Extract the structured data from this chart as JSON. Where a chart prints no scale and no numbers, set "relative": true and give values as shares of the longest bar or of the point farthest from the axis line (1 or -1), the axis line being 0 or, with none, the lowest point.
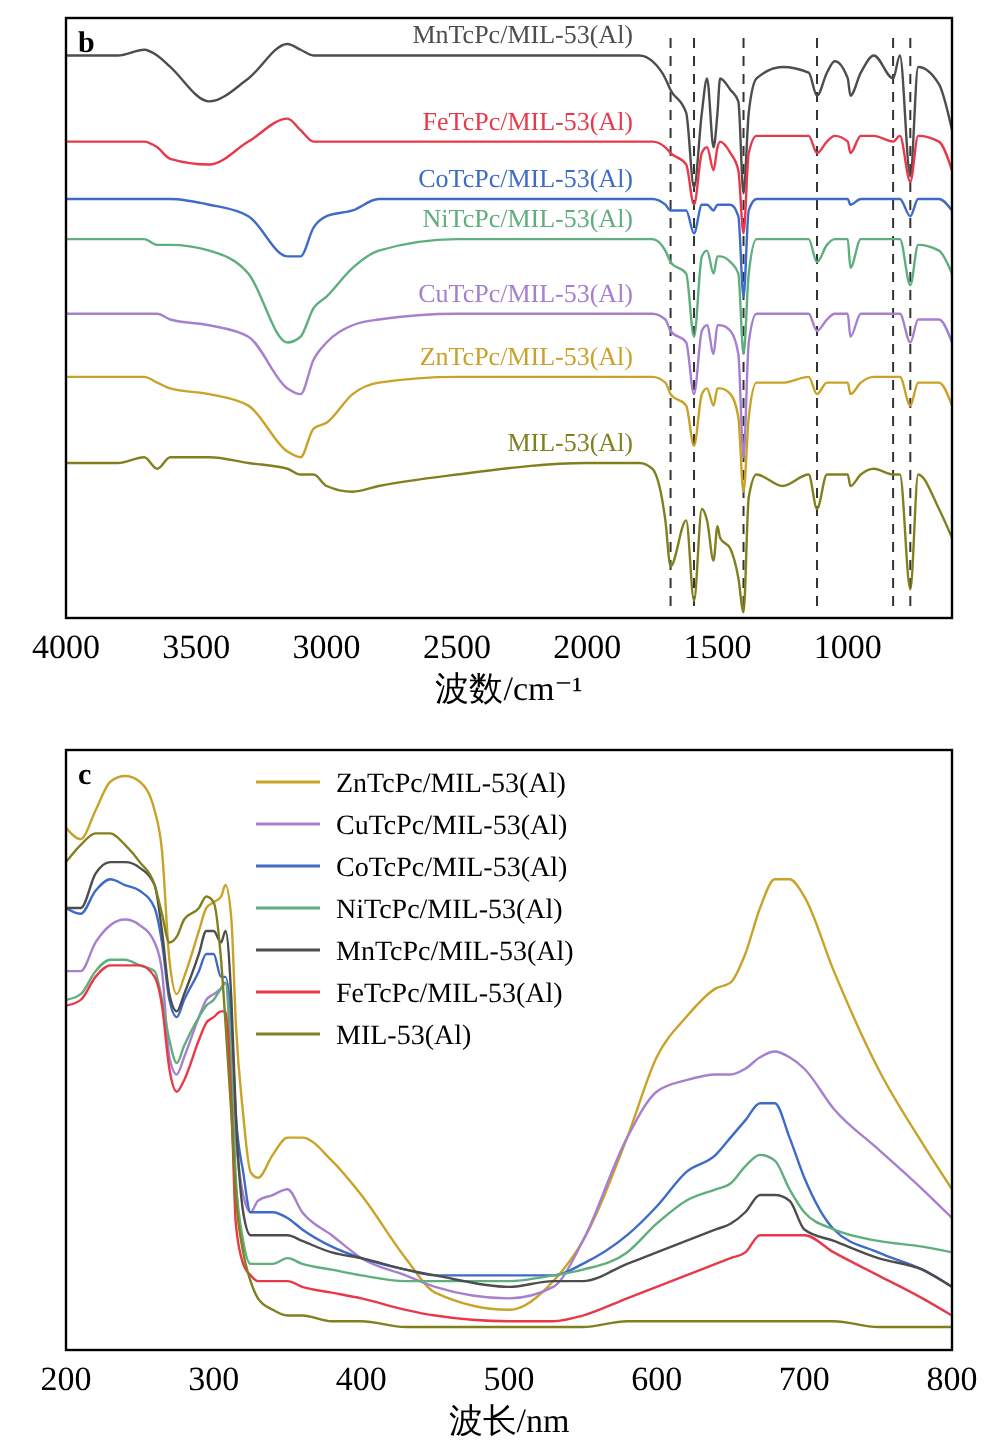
{
  "chart_data": [
    {
      "type": "line",
      "title": "b",
      "xlabel": "波数/cm⁻¹",
      "relative": true,
      "tick_labels": "x",
      "xlim": [
        4000,
        600
      ],
      "xticks": [
        4000,
        3500,
        3000,
        2500,
        2000,
        1500,
        1000
      ],
      "x": [
        4000,
        3800,
        3700,
        3650,
        3600,
        3450,
        3300,
        3150,
        3100,
        3050,
        3000,
        2900,
        2800,
        2500,
        2000,
        1800,
        1750,
        1700,
        1680,
        1620,
        1590,
        1560,
        1540,
        1515,
        1500,
        1490,
        1450,
        1420,
        1400,
        1380,
        1350,
        1250,
        1150,
        1118,
        1080,
        1050,
        1000,
        990,
        950,
        900,
        826,
        800,
        760,
        730,
        650,
        600
      ],
      "series": [
        {
          "name": "MnTcPc/MIL-53(Al)",
          "color": "#4d4d4d",
          "values": [
            0.98,
            0.98,
            0.99,
            0.98,
            0.96,
            0.9,
            0.94,
            1.0,
            0.99,
            0.98,
            0.98,
            0.98,
            0.98,
            0.98,
            0.98,
            0.98,
            0.97,
            0.94,
            0.92,
            0.88,
            0.75,
            0.88,
            0.94,
            0.82,
            0.88,
            0.94,
            0.92,
            0.9,
            0.74,
            0.88,
            0.94,
            0.96,
            0.95,
            0.91,
            0.95,
            0.97,
            0.94,
            0.91,
            0.95,
            0.98,
            0.94,
            0.98,
            0.77,
            0.96,
            0.93,
            0.85
          ]
        },
        {
          "name": "FeTcPc/MIL-53(Al)",
          "color": "#e8394a",
          "values": [
            0.83,
            0.83,
            0.83,
            0.82,
            0.8,
            0.79,
            0.83,
            0.87,
            0.85,
            0.83,
            0.83,
            0.83,
            0.83,
            0.83,
            0.83,
            0.83,
            0.83,
            0.82,
            0.81,
            0.79,
            0.72,
            0.81,
            0.82,
            0.78,
            0.82,
            0.83,
            0.81,
            0.78,
            0.67,
            0.81,
            0.84,
            0.84,
            0.84,
            0.81,
            0.83,
            0.84,
            0.83,
            0.81,
            0.84,
            0.84,
            0.83,
            0.84,
            0.76,
            0.84,
            0.83,
            0.78
          ]
        },
        {
          "name": "CoTcPc/MIL-53(Al)",
          "color": "#3d6bc7",
          "values": [
            0.73,
            0.73,
            0.73,
            0.73,
            0.73,
            0.72,
            0.7,
            0.63,
            0.63,
            0.68,
            0.7,
            0.71,
            0.73,
            0.73,
            0.73,
            0.73,
            0.73,
            0.72,
            0.71,
            0.71,
            0.67,
            0.72,
            0.72,
            0.71,
            0.72,
            0.72,
            0.72,
            0.7,
            0.56,
            0.71,
            0.73,
            0.73,
            0.73,
            0.73,
            0.73,
            0.73,
            0.73,
            0.72,
            0.73,
            0.73,
            0.73,
            0.73,
            0.7,
            0.73,
            0.73,
            0.71
          ]
        },
        {
          "name": "NiTcPc/MIL-53(Al)",
          "color": "#5fae7d",
          "values": [
            0.66,
            0.66,
            0.66,
            0.65,
            0.65,
            0.64,
            0.6,
            0.48,
            0.49,
            0.54,
            0.56,
            0.61,
            0.64,
            0.66,
            0.66,
            0.66,
            0.66,
            0.64,
            0.62,
            0.6,
            0.49,
            0.63,
            0.64,
            0.6,
            0.63,
            0.63,
            0.62,
            0.6,
            0.46,
            0.6,
            0.66,
            0.66,
            0.66,
            0.62,
            0.65,
            0.66,
            0.66,
            0.61,
            0.66,
            0.66,
            0.66,
            0.66,
            0.58,
            0.65,
            0.64,
            0.6
          ]
        },
        {
          "name": "CuTcPc/MIL-53(Al)",
          "color": "#a67fcf",
          "values": [
            0.53,
            0.53,
            0.53,
            0.53,
            0.52,
            0.51,
            0.49,
            0.4,
            0.39,
            0.45,
            0.48,
            0.51,
            0.52,
            0.53,
            0.53,
            0.53,
            0.53,
            0.52,
            0.5,
            0.48,
            0.39,
            0.5,
            0.51,
            0.46,
            0.51,
            0.51,
            0.5,
            0.46,
            0.28,
            0.48,
            0.53,
            0.53,
            0.53,
            0.5,
            0.52,
            0.53,
            0.53,
            0.49,
            0.53,
            0.53,
            0.53,
            0.53,
            0.48,
            0.52,
            0.52,
            0.48
          ]
        },
        {
          "name": "ZnTcPc/MIL-53(Al)",
          "color": "#c9a227",
          "values": [
            0.42,
            0.42,
            0.42,
            0.41,
            0.4,
            0.39,
            0.37,
            0.29,
            0.28,
            0.33,
            0.34,
            0.39,
            0.41,
            0.42,
            0.42,
            0.42,
            0.42,
            0.41,
            0.39,
            0.37,
            0.3,
            0.39,
            0.4,
            0.37,
            0.4,
            0.4,
            0.39,
            0.35,
            0.22,
            0.35,
            0.41,
            0.41,
            0.42,
            0.39,
            0.41,
            0.41,
            0.41,
            0.39,
            0.41,
            0.42,
            0.42,
            0.42,
            0.37,
            0.41,
            0.41,
            0.37
          ]
        },
        {
          "name": "MIL-53(Al)",
          "color": "#80801f",
          "values": [
            0.27,
            0.27,
            0.28,
            0.26,
            0.28,
            0.28,
            0.27,
            0.26,
            0.25,
            0.25,
            0.23,
            0.22,
            0.23,
            0.25,
            0.27,
            0.27,
            0.26,
            0.17,
            0.09,
            0.17,
            0.03,
            0.19,
            0.17,
            0.1,
            0.16,
            0.14,
            0.12,
            0.07,
            0.01,
            0.21,
            0.25,
            0.23,
            0.25,
            0.19,
            0.25,
            0.25,
            0.25,
            0.23,
            0.25,
            0.26,
            0.25,
            0.25,
            0.05,
            0.25,
            0.19,
            0.14
          ]
        }
      ],
      "ref_lines": [
        {
          "axis": "x",
          "value": 1680,
          "color": "#333333",
          "line_style": "dashed"
        },
        {
          "axis": "x",
          "value": 1590,
          "color": "#333333",
          "line_style": "dashed"
        },
        {
          "axis": "x",
          "value": 1400,
          "color": "#333333",
          "line_style": "dashed"
        },
        {
          "axis": "x",
          "value": 1118,
          "color": "#333333",
          "line_style": "dashed"
        },
        {
          "axis": "x",
          "value": 826,
          "color": "#333333",
          "line_style": "dashed"
        },
        {
          "axis": "x",
          "value": 760,
          "color": "#333333",
          "line_style": "dashed"
        }
      ]
    },
    {
      "type": "line",
      "title": "c",
      "xlabel": "波长/nm",
      "relative": true,
      "tick_labels": "x",
      "legend": "top",
      "xlim": [
        200,
        800
      ],
      "xticks": [
        200,
        300,
        400,
        500,
        600,
        700,
        800
      ],
      "x": [
        200,
        210,
        220,
        230,
        240,
        250,
        260,
        265,
        270,
        275,
        280,
        290,
        295,
        300,
        305,
        308,
        312,
        315,
        320,
        325,
        330,
        340,
        350,
        360,
        380,
        400,
        430,
        450,
        500,
        530,
        550,
        580,
        600,
        620,
        640,
        650,
        660,
        670,
        680,
        690,
        700,
        720,
        750,
        780,
        800
      ],
      "series": [
        {
          "name": "ZnTcPc/MIL-53(Al)",
          "color": "#c9a227",
          "values": [
            0.91,
            0.89,
            0.94,
            0.99,
            1.0,
            0.99,
            0.94,
            0.87,
            0.68,
            0.62,
            0.65,
            0.73,
            0.77,
            0.78,
            0.79,
            0.81,
            0.75,
            0.57,
            0.41,
            0.31,
            0.3,
            0.34,
            0.37,
            0.37,
            0.33,
            0.27,
            0.16,
            0.1,
            0.07,
            0.12,
            0.19,
            0.37,
            0.51,
            0.58,
            0.63,
            0.64,
            0.69,
            0.77,
            0.82,
            0.82,
            0.79,
            0.66,
            0.49,
            0.36,
            0.28
          ]
        },
        {
          "name": "CuTcPc/MIL-53(Al)",
          "color": "#a67fcf",
          "values": [
            0.66,
            0.66,
            0.71,
            0.74,
            0.75,
            0.74,
            0.71,
            0.66,
            0.51,
            0.48,
            0.51,
            0.58,
            0.61,
            0.62,
            0.63,
            0.64,
            0.5,
            0.37,
            0.27,
            0.24,
            0.26,
            0.27,
            0.28,
            0.24,
            0.2,
            0.16,
            0.13,
            0.11,
            0.09,
            0.11,
            0.19,
            0.37,
            0.45,
            0.47,
            0.48,
            0.48,
            0.49,
            0.51,
            0.52,
            0.51,
            0.49,
            0.42,
            0.35,
            0.28,
            0.23
          ]
        },
        {
          "name": "CoTcPc/MIL-53(Al)",
          "color": "#3d6bc7",
          "values": [
            0.77,
            0.76,
            0.8,
            0.82,
            0.81,
            0.8,
            0.77,
            0.71,
            0.61,
            0.58,
            0.61,
            0.66,
            0.69,
            0.69,
            0.65,
            0.65,
            0.57,
            0.41,
            0.31,
            0.24,
            0.24,
            0.24,
            0.23,
            0.21,
            0.18,
            0.16,
            0.14,
            0.13,
            0.13,
            0.13,
            0.15,
            0.2,
            0.25,
            0.31,
            0.34,
            0.37,
            0.4,
            0.43,
            0.43,
            0.37,
            0.3,
            0.21,
            0.17,
            0.14,
            0.11
          ]
        },
        {
          "name": "NiTcPc/MIL-53(Al)",
          "color": "#5fae7d",
          "values": [
            0.61,
            0.62,
            0.66,
            0.68,
            0.68,
            0.67,
            0.66,
            0.61,
            0.54,
            0.5,
            0.53,
            0.58,
            0.6,
            0.61,
            0.63,
            0.64,
            0.5,
            0.3,
            0.19,
            0.15,
            0.15,
            0.15,
            0.16,
            0.15,
            0.14,
            0.13,
            0.12,
            0.12,
            0.12,
            0.13,
            0.14,
            0.17,
            0.22,
            0.26,
            0.28,
            0.29,
            0.32,
            0.34,
            0.33,
            0.28,
            0.24,
            0.21,
            0.19,
            0.18,
            0.17
          ]
        },
        {
          "name": "MnTcPc/MIL-53(Al)",
          "color": "#4d4d4d",
          "values": [
            0.77,
            0.77,
            0.83,
            0.85,
            0.85,
            0.84,
            0.81,
            0.73,
            0.62,
            0.59,
            0.62,
            0.69,
            0.73,
            0.73,
            0.71,
            0.73,
            0.61,
            0.41,
            0.24,
            0.2,
            0.2,
            0.2,
            0.2,
            0.19,
            0.17,
            0.16,
            0.14,
            0.13,
            0.11,
            0.12,
            0.12,
            0.15,
            0.17,
            0.19,
            0.21,
            0.22,
            0.24,
            0.27,
            0.27,
            0.26,
            0.21,
            0.19,
            0.16,
            0.14,
            0.11
          ]
        },
        {
          "name": "FeTcPc/MIL-53(Al)",
          "color": "#e8394a",
          "values": [
            0.6,
            0.61,
            0.65,
            0.67,
            0.67,
            0.67,
            0.65,
            0.6,
            0.49,
            0.45,
            0.47,
            0.54,
            0.57,
            0.58,
            0.59,
            0.59,
            0.43,
            0.22,
            0.15,
            0.13,
            0.12,
            0.12,
            0.12,
            0.11,
            0.1,
            0.09,
            0.07,
            0.06,
            0.05,
            0.05,
            0.06,
            0.09,
            0.11,
            0.13,
            0.15,
            0.16,
            0.17,
            0.2,
            0.2,
            0.2,
            0.2,
            0.17,
            0.13,
            0.09,
            0.06
          ]
        },
        {
          "name": "MIL-53(Al)",
          "color": "#80801f",
          "values": [
            0.85,
            0.88,
            0.9,
            0.9,
            0.88,
            0.85,
            0.81,
            0.76,
            0.71,
            0.72,
            0.75,
            0.77,
            0.79,
            0.78,
            0.68,
            0.57,
            0.41,
            0.27,
            0.17,
            0.12,
            0.09,
            0.07,
            0.06,
            0.06,
            0.05,
            0.05,
            0.04,
            0.04,
            0.04,
            0.04,
            0.04,
            0.05,
            0.05,
            0.05,
            0.05,
            0.05,
            0.05,
            0.05,
            0.05,
            0.05,
            0.05,
            0.05,
            0.04,
            0.04,
            0.04
          ]
        }
      ]
    }
  ]
}
